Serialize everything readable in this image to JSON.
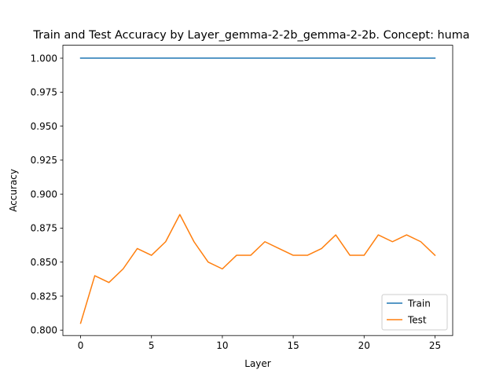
{
  "chart_data": {
    "type": "line",
    "title": "Train and Test Accuracy by Layer_gemma-2-2b_gemma-2-2b. Concept: huma",
    "xlabel": "Layer",
    "ylabel": "Accuracy",
    "xlim": [
      -1.25,
      26.25
    ],
    "ylim": [
      0.796,
      1.0095
    ],
    "xticks": [
      0,
      5,
      10,
      15,
      20,
      25
    ],
    "xtick_labels": [
      "0",
      "5",
      "10",
      "15",
      "20",
      "25"
    ],
    "yticks": [
      0.8,
      0.825,
      0.85,
      0.875,
      0.9,
      0.925,
      0.95,
      0.975,
      1.0
    ],
    "ytick_labels": [
      "0.800",
      "0.825",
      "0.850",
      "0.875",
      "0.900",
      "0.925",
      "0.950",
      "0.975",
      "1.000"
    ],
    "grid": false,
    "legend_position": "lower right",
    "x": [
      0,
      1,
      2,
      3,
      4,
      5,
      6,
      7,
      8,
      9,
      10,
      11,
      12,
      13,
      14,
      15,
      16,
      17,
      18,
      19,
      20,
      21,
      22,
      23,
      24,
      25
    ],
    "series": [
      {
        "name": "Train",
        "color": "#1f77b4",
        "values": [
          1.0,
          1.0,
          1.0,
          1.0,
          1.0,
          1.0,
          1.0,
          1.0,
          1.0,
          1.0,
          1.0,
          1.0,
          1.0,
          1.0,
          1.0,
          1.0,
          1.0,
          1.0,
          1.0,
          1.0,
          1.0,
          1.0,
          1.0,
          1.0,
          1.0,
          1.0
        ]
      },
      {
        "name": "Test",
        "color": "#ff7f0e",
        "values": [
          0.805,
          0.84,
          0.835,
          0.845,
          0.86,
          0.855,
          0.865,
          0.885,
          0.865,
          0.85,
          0.845,
          0.855,
          0.855,
          0.865,
          0.86,
          0.855,
          0.855,
          0.86,
          0.87,
          0.855,
          0.855,
          0.87,
          0.865,
          0.87,
          0.865,
          0.855
        ]
      }
    ]
  }
}
